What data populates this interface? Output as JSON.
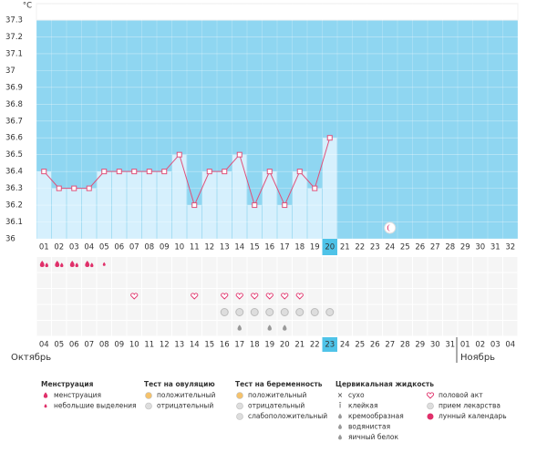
{
  "chart_data": {
    "type": "line",
    "y_label": "°C",
    "categories": [
      "01",
      "02",
      "03",
      "04",
      "05",
      "06",
      "07",
      "08",
      "09",
      "10",
      "11",
      "12",
      "13",
      "14",
      "15",
      "16",
      "17",
      "18",
      "19",
      "20",
      "21",
      "22",
      "23",
      "24",
      "25",
      "26",
      "27",
      "28",
      "29",
      "30",
      "31",
      "32"
    ],
    "values": [
      36.4,
      36.3,
      36.3,
      36.3,
      36.4,
      36.4,
      36.4,
      36.4,
      36.4,
      36.5,
      36.2,
      36.4,
      36.4,
      36.5,
      36.2,
      36.4,
      36.2,
      36.4,
      36.3,
      36.6,
      null,
      null,
      null,
      null,
      null,
      null,
      null,
      null,
      null,
      null,
      null,
      null
    ],
    "color": "#e0507a",
    "ylim": [
      36,
      37.3
    ],
    "yticks": [
      36,
      36.1,
      36.2,
      36.3,
      36.4,
      36.5,
      36.6,
      36.7,
      36.8,
      36.9,
      37,
      37.1,
      37.2,
      37.3
    ],
    "grid": true
  },
  "calendar": {
    "dates": [
      "04",
      "05",
      "06",
      "07",
      "08",
      "09",
      "10",
      "11",
      "12",
      "13",
      "14",
      "15",
      "16",
      "17",
      "18",
      "19",
      "20",
      "21",
      "22",
      "23",
      "24",
      "25",
      "26",
      "27",
      "28",
      "29",
      "30",
      "31",
      "01",
      "02",
      "03",
      "04"
    ],
    "months": [
      "Октябрь",
      "Ноябрь"
    ]
  },
  "legend": {
    "groups": [
      {
        "title": "Менструация",
        "items": [
          "менструация",
          "небольшие выделения"
        ]
      },
      {
        "title": "Тест на овуляцию",
        "items": [
          "положительный",
          "отрицательный"
        ]
      },
      {
        "title": "Тест на беременность",
        "items": [
          "положительный",
          "отрицательный",
          "слабоположительный"
        ]
      },
      {
        "title": "Цервикальная жидкость",
        "items": [
          "сухо",
          "клейкая",
          "кремообразная",
          "водянистая",
          "яичный белок"
        ]
      },
      {
        "items": [
          "половой акт",
          "прием лекарства",
          "лунный календарь"
        ]
      }
    ]
  }
}
